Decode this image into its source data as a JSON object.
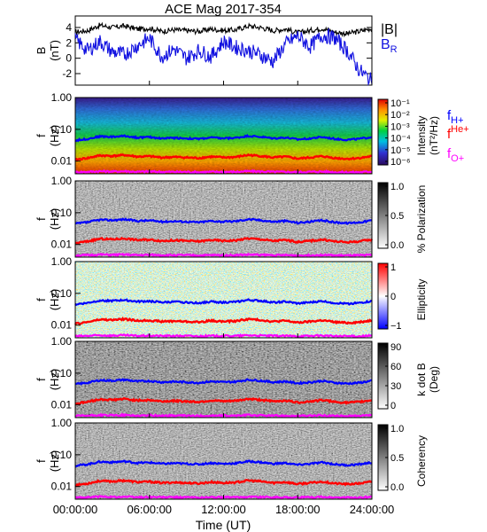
{
  "figure": {
    "title": "ACE Mag 2017-354",
    "xlabel": "Time (UT)",
    "xticks": [
      "00:00:00",
      "06:00:00",
      "12:00:00",
      "18:00:00",
      "24:00:00"
    ]
  },
  "colors": {
    "B_total": "#000000",
    "B_R": "#1010e0",
    "f_H": "#0000ff",
    "f_He": "#ff0000",
    "f_O": "#ff00ff"
  },
  "chart_data": [
    {
      "type": "line",
      "panel": "field",
      "ylabel": "B (nT)",
      "ylim": [
        -3.5,
        5.5
      ],
      "yticks": [
        "4",
        "2",
        "0",
        "-2"
      ],
      "x": [
        0,
        1,
        2,
        3,
        4,
        5,
        6,
        7,
        8,
        9,
        10,
        11,
        12,
        13,
        14,
        15,
        16,
        17,
        18,
        19,
        20,
        21,
        22,
        23,
        24
      ],
      "xlim": [
        0,
        24
      ],
      "series": [
        {
          "name": "|B|",
          "values": [
            3.4,
            3.6,
            4.3,
            4.0,
            4.2,
            3.8,
            3.9,
            3.5,
            3.7,
            3.6,
            3.5,
            3.8,
            3.6,
            3.7,
            4.2,
            4.0,
            3.6,
            3.8,
            3.3,
            3.6,
            3.9,
            3.4,
            3.2,
            3.5,
            3.9
          ]
        },
        {
          "name": "B_R",
          "values": [
            2.4,
            1.0,
            2.2,
            0.8,
            0.5,
            1.6,
            2.6,
            0.2,
            1.2,
            0.0,
            1.0,
            0.2,
            2.2,
            1.4,
            1.0,
            0.4,
            -0.4,
            1.8,
            2.9,
            1.5,
            3.0,
            2.6,
            1.0,
            -1.6,
            -3.0
          ]
        }
      ],
      "legend": [
        "|B|",
        "B_R"
      ]
    },
    {
      "type": "heatmap",
      "panel": "intensity",
      "ylabel": "f (Hz)",
      "yscale": "log",
      "ylim": [
        0.004,
        1.0
      ],
      "yticks": [
        "1.00",
        "0.10",
        "0.01"
      ],
      "colorbar_label": "Intensity (nT²/Hz)",
      "colorbar_ticks": [
        "10⁻¹",
        "10⁻²",
        "10⁻³",
        "10⁻⁴",
        "10⁻⁵",
        "10⁻⁶"
      ],
      "legend": [
        "f_H+",
        "f_He+",
        "f_O+"
      ]
    },
    {
      "type": "heatmap",
      "panel": "polarization",
      "ylabel": "f (Hz)",
      "yscale": "log",
      "ylim": [
        0.004,
        1.0
      ],
      "yticks": [
        "1.00",
        "0.10",
        "0.01"
      ],
      "colorbar_label": "% Polarization",
      "colorbar_ticks": [
        "1.0",
        "0.5",
        "0.0"
      ]
    },
    {
      "type": "heatmap",
      "panel": "ellipticity",
      "ylabel": "f (Hz)",
      "yscale": "log",
      "ylim": [
        0.004,
        1.0
      ],
      "yticks": [
        "1.00",
        "0.10",
        "0.01"
      ],
      "colorbar_label": "Ellipticity",
      "colorbar_ticks": [
        "1",
        "0",
        "−1"
      ]
    },
    {
      "type": "heatmap",
      "panel": "kdotb",
      "ylabel": "f (Hz)",
      "yscale": "log",
      "ylim": [
        0.004,
        1.0
      ],
      "yticks": [
        "1.00",
        "0.10",
        "0.01"
      ],
      "colorbar_label": "k dot B (Deg)",
      "colorbar_ticks": [
        "90",
        "60",
        "30",
        "0"
      ]
    },
    {
      "type": "heatmap",
      "panel": "coherency",
      "ylabel": "f (Hz)",
      "yscale": "log",
      "ylim": [
        0.004,
        1.0
      ],
      "yticks": [
        "1.00",
        "0.10",
        "0.01"
      ],
      "colorbar_label": "Coherency",
      "colorbar_ticks": [
        "1.0",
        "0.5",
        "0.0"
      ]
    }
  ],
  "gyrofrequencies": {
    "x": [
      0,
      1,
      2,
      3,
      4,
      5,
      6,
      7,
      8,
      9,
      10,
      11,
      12,
      13,
      14,
      15,
      16,
      17,
      18,
      19,
      20,
      21,
      22,
      23,
      24
    ],
    "f_H": [
      0.045,
      0.05,
      0.06,
      0.058,
      0.062,
      0.055,
      0.057,
      0.052,
      0.054,
      0.052,
      0.05,
      0.055,
      0.052,
      0.054,
      0.062,
      0.058,
      0.052,
      0.055,
      0.048,
      0.052,
      0.057,
      0.05,
      0.047,
      0.05,
      0.057
    ],
    "f_He": [
      0.011,
      0.0125,
      0.015,
      0.0145,
      0.0155,
      0.0138,
      0.0142,
      0.013,
      0.0135,
      0.013,
      0.0125,
      0.0138,
      0.013,
      0.0135,
      0.0155,
      0.0145,
      0.013,
      0.0138,
      0.012,
      0.013,
      0.0142,
      0.0125,
      0.0118,
      0.0125,
      0.0142
    ],
    "f_O": [
      0.0045,
      0.0046,
      0.0048,
      0.0047,
      0.0048,
      0.0046,
      0.0047,
      0.0046,
      0.0046,
      0.0046,
      0.0045,
      0.0046,
      0.0046,
      0.0046,
      0.0048,
      0.0047,
      0.0046,
      0.0046,
      0.0045,
      0.0046,
      0.0047,
      0.0045,
      0.0045,
      0.0045,
      0.0047
    ]
  }
}
